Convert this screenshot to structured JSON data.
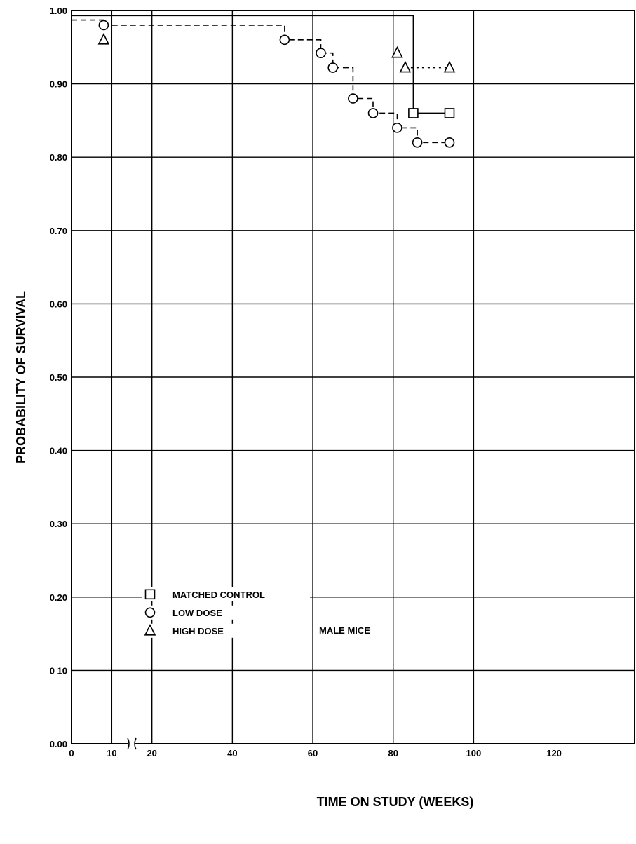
{
  "chart_data": {
    "type": "line",
    "xlabel": "TIME ON STUDY (WEEKS)",
    "ylabel": "PROBABILITY OF SURVIVAL",
    "annotation": "MALE MICE",
    "legend_position": "bottom-left",
    "grid": true,
    "x_ticks": [
      {
        "value": 0,
        "label": "0"
      },
      {
        "value": 10,
        "label": "10"
      },
      {
        "value": 20,
        "label": "20"
      },
      {
        "value": 40,
        "label": "40"
      },
      {
        "value": 60,
        "label": "60"
      },
      {
        "value": 80,
        "label": "80"
      },
      {
        "value": 100,
        "label": "100"
      },
      {
        "value": 120,
        "label": "120"
      }
    ],
    "x_axis_break_between": [
      10,
      20
    ],
    "y_ticks": [
      {
        "value": 0.0,
        "label": "0.00"
      },
      {
        "value": 0.1,
        "label": "0 10"
      },
      {
        "value": 0.2,
        "label": "0.20"
      },
      {
        "value": 0.3,
        "label": "0.30"
      },
      {
        "value": 0.4,
        "label": "0.40"
      },
      {
        "value": 0.5,
        "label": "0.50"
      },
      {
        "value": 0.6,
        "label": "0.60"
      },
      {
        "value": 0.7,
        "label": "0.70"
      },
      {
        "value": 0.8,
        "label": "0.80"
      },
      {
        "value": 0.9,
        "label": "0.90"
      },
      {
        "value": 1.0,
        "label": "1.00"
      }
    ],
    "ylim": [
      0,
      1.0
    ],
    "series": [
      {
        "name": "MATCHED CONTROL",
        "marker": "square",
        "line": "solid",
        "steps": [
          [
            0,
            0.993
          ],
          [
            85,
            0.993
          ],
          [
            85,
            0.86
          ],
          [
            94,
            0.86
          ]
        ],
        "points": [
          [
            85,
            0.86
          ],
          [
            94,
            0.86
          ]
        ]
      },
      {
        "name": "LOW DOSE",
        "marker": "circle",
        "line": "dashed",
        "steps": [
          [
            0,
            0.987
          ],
          [
            8,
            0.987
          ],
          [
            8,
            0.98
          ],
          [
            53,
            0.98
          ],
          [
            53,
            0.96
          ],
          [
            62,
            0.96
          ],
          [
            62,
            0.942
          ],
          [
            65,
            0.942
          ],
          [
            65,
            0.922
          ],
          [
            70,
            0.922
          ],
          [
            70,
            0.88
          ],
          [
            75,
            0.88
          ],
          [
            75,
            0.86
          ],
          [
            81,
            0.86
          ],
          [
            81,
            0.84
          ],
          [
            86,
            0.84
          ],
          [
            86,
            0.82
          ],
          [
            94,
            0.82
          ]
        ],
        "points": [
          [
            8,
            0.98
          ],
          [
            53,
            0.96
          ],
          [
            62,
            0.942
          ],
          [
            65,
            0.922
          ],
          [
            70,
            0.88
          ],
          [
            75,
            0.86
          ],
          [
            81,
            0.84
          ],
          [
            86,
            0.82
          ],
          [
            94,
            0.82
          ]
        ]
      },
      {
        "name": "HIGH DOSE",
        "marker": "triangle",
        "line": "dotted",
        "steps": [
          [
            83,
            0.922
          ],
          [
            94,
            0.922
          ]
        ],
        "points": [
          [
            8,
            0.96
          ],
          [
            81,
            0.942
          ],
          [
            83,
            0.922
          ],
          [
            94,
            0.922
          ]
        ]
      }
    ]
  }
}
